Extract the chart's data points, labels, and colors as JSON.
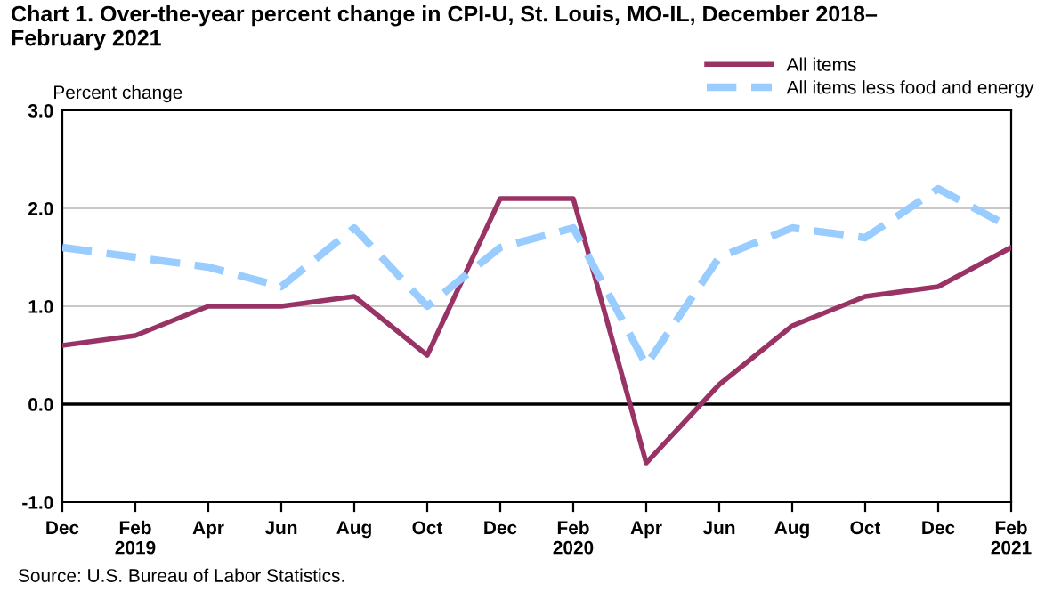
{
  "chart_data": {
    "type": "line",
    "title": "Chart 1. Over-the-year percent change in CPI-U, St. Louis, MO-IL, December 2018–\nFebruary 2021",
    "ylabel": "Percent change",
    "categories": [
      "Dec",
      "Feb\n2019",
      "Apr",
      "Jun",
      "Aug",
      "Oct",
      "Dec",
      "Feb\n2020",
      "Apr",
      "Jun",
      "Aug",
      "Oct",
      "Dec",
      "Feb\n2021"
    ],
    "series": [
      {
        "name": "All items",
        "color": "#993366",
        "line_style": "solid",
        "values": [
          0.6,
          0.7,
          1.0,
          1.0,
          1.1,
          0.5,
          2.1,
          2.1,
          -0.6,
          0.2,
          0.8,
          1.1,
          1.2,
          1.6
        ]
      },
      {
        "name": "All items less food and energy",
        "color": "#99ccff",
        "line_style": "dashed",
        "values": [
          1.6,
          1.5,
          1.4,
          1.2,
          1.8,
          1.0,
          1.6,
          1.8,
          0.4,
          1.5,
          1.8,
          1.7,
          2.2,
          1.8
        ]
      }
    ],
    "ylim": [
      -1.0,
      3.0
    ],
    "yticks": [
      {
        "value": -1.0,
        "label": "-1.0"
      },
      {
        "value": 0.0,
        "label": "0.0"
      },
      {
        "value": 1.0,
        "label": "1.0"
      },
      {
        "value": 2.0,
        "label": "2.0"
      },
      {
        "value": 3.0,
        "label": "3.0"
      }
    ],
    "ref_lines": [
      {
        "axis": "y",
        "value": 0.0,
        "color": "#000000"
      }
    ],
    "grid": "y",
    "legend": "top right",
    "marker": "none",
    "annotations": [
      "Source: U.S. Bureau of Labor Statistics."
    ]
  }
}
